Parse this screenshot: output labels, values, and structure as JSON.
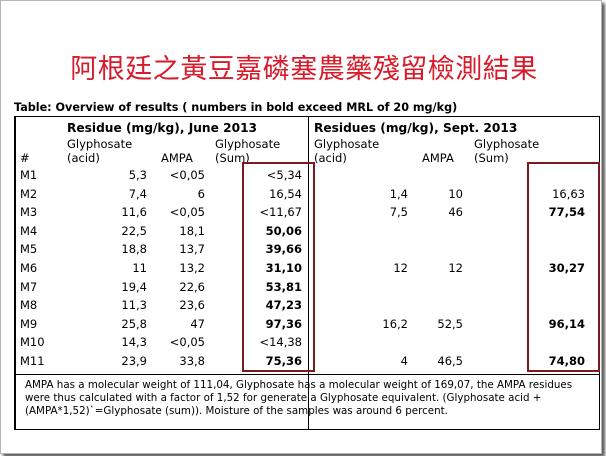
{
  "title": "阿根廷之黃豆嘉磷塞農藥殘留檢測結果",
  "caption": "Table: Overview of results ( numbers in bold exceed MRL of 20 mg/kg)",
  "section_june": "Residue (mg/kg), June 2013",
  "section_sept": "Residues (mg/kg), Sept. 2013",
  "headers": {
    "num": "#",
    "gly_acid_1": "Glyphosate",
    "gly_acid_2": "(acid)",
    "ampa": "AMPA",
    "gly_sum_1": "Glyphosate",
    "gly_sum_2": "(Sum)",
    "sept_gly_acid_1": "Glyphosate",
    "sept_gly_acid_2": "(acid)",
    "sept_ampa": "AMPA",
    "sept_gly_sum_1": "Glyphosate",
    "sept_gly_sum_2": "(Sum)"
  },
  "rows": [
    {
      "id": "M1",
      "j_acid": "5,3",
      "j_ampa": "<0,05",
      "j_sum": "<5,34",
      "j_bold": false,
      "s_acid": "",
      "s_ampa": "",
      "s_sum": "",
      "s_bold": false
    },
    {
      "id": "M2",
      "j_acid": "7,4",
      "j_ampa": "6",
      "j_sum": "16,54",
      "j_bold": false,
      "s_acid": "1,4",
      "s_ampa": "10",
      "s_sum": "16,63",
      "s_bold": false
    },
    {
      "id": "M3",
      "j_acid": "11,6",
      "j_ampa": "<0,05",
      "j_sum": "<11,67",
      "j_bold": false,
      "s_acid": "7,5",
      "s_ampa": "46",
      "s_sum": "77,54",
      "s_bold": true
    },
    {
      "id": "M4",
      "j_acid": "22,5",
      "j_ampa": "18,1",
      "j_sum": "50,06",
      "j_bold": true,
      "s_acid": "",
      "s_ampa": "",
      "s_sum": "",
      "s_bold": false
    },
    {
      "id": "M5",
      "j_acid": "18,8",
      "j_ampa": "13,7",
      "j_sum": "39,66",
      "j_bold": true,
      "s_acid": "",
      "s_ampa": "",
      "s_sum": "",
      "s_bold": false
    },
    {
      "id": "M6",
      "j_acid": "11",
      "j_ampa": "13,2",
      "j_sum": "31,10",
      "j_bold": true,
      "s_acid": "12",
      "s_ampa": "12",
      "s_sum": "30,27",
      "s_bold": true
    },
    {
      "id": "M7",
      "j_acid": "19,4",
      "j_ampa": "22,6",
      "j_sum": "53,81",
      "j_bold": true,
      "s_acid": "",
      "s_ampa": "",
      "s_sum": "",
      "s_bold": false
    },
    {
      "id": "M8",
      "j_acid": "11,3",
      "j_ampa": "23,6",
      "j_sum": "47,23",
      "j_bold": true,
      "s_acid": "",
      "s_ampa": "",
      "s_sum": "",
      "s_bold": false
    },
    {
      "id": "M9",
      "j_acid": "25,8",
      "j_ampa": "47",
      "j_sum": "97,36",
      "j_bold": true,
      "s_acid": "16,2",
      "s_ampa": "52,5",
      "s_sum": "96,14",
      "s_bold": true
    },
    {
      "id": "M10",
      "j_acid": "14,3",
      "j_ampa": "<0,05",
      "j_sum": "<14,38",
      "j_bold": false,
      "s_acid": "",
      "s_ampa": "",
      "s_sum": "",
      "s_bold": false
    },
    {
      "id": "M11",
      "j_acid": "23,9",
      "j_ampa": "33,8",
      "j_sum": "75,36",
      "j_bold": true,
      "s_acid": "4",
      "s_ampa": "46,5",
      "s_sum": "74,80",
      "s_bold": true
    }
  ],
  "footnote": "AMPA has a molecular weight of 111,04, Glyphosate has a molecular weight of 169,07, the AMPA residues were thus calculated with a factor of 1,52 for generate a Glyphosate equivalent. (Glyphosate acid + (AMPA*1,52)`=Glyphosate (sum)). Moisture of the samples was around 6 percent.",
  "colors": {
    "title": "#d81b2b",
    "highlight_box": "#7b1a1f"
  }
}
